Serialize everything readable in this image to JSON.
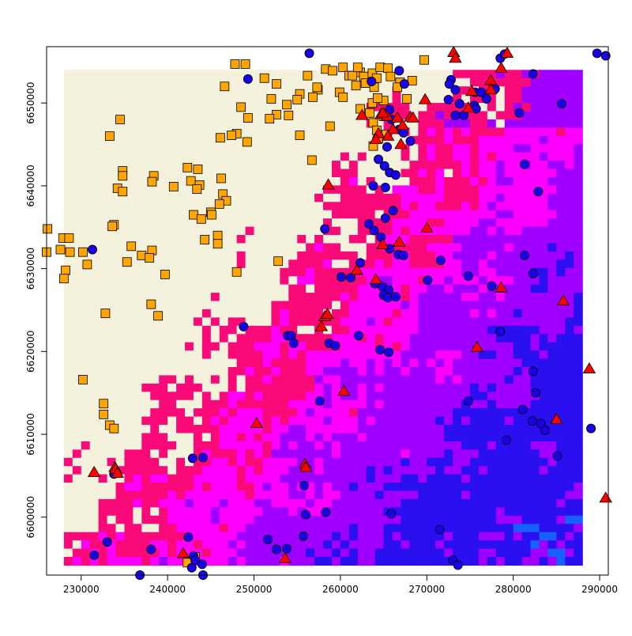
{
  "map": {
    "x_axis": {
      "range": [
        226000,
        291000
      ],
      "ticks": [
        230000,
        240000,
        250000,
        260000,
        270000,
        280000,
        290000
      ]
    },
    "y_axis": {
      "range": [
        6593000,
        6656800
      ],
      "ticks": [
        6600000,
        6610000,
        6620000,
        6630000,
        6640000,
        6650000
      ]
    },
    "raster": {
      "extent_x": [
        228000,
        288000
      ],
      "extent_y": [
        6594200,
        6654000
      ],
      "palette": [
        "#f4f2dc",
        "#fa0a78",
        "#ff00ff",
        "#a000ff",
        "#2a10f0",
        "#1560ff"
      ],
      "zones": [
        {
          "value": 0,
          "color": "#f4f2dc"
        },
        {
          "value": 1,
          "color": "#fa0a78"
        },
        {
          "value": 2,
          "color": "#ff00ff"
        },
        {
          "value": 3,
          "color": "#a000ff"
        },
        {
          "value": 4,
          "color": "#2a10f0"
        },
        {
          "value": 5,
          "color": "#1560ff"
        }
      ]
    },
    "point_layers": [
      {
        "symbol": "square",
        "fill": "#ffa500",
        "points": [
          [
            247800,
            6654700
          ],
          [
            249000,
            6654700
          ],
          [
            251200,
            6653000
          ],
          [
            252600,
            6652300
          ],
          [
            255300,
            6651100
          ],
          [
            256200,
            6653300
          ],
          [
            258300,
            6654100
          ],
          [
            257400,
            6651600
          ],
          [
            252000,
            6650500
          ],
          [
            253800,
            6649800
          ],
          [
            255000,
            6650400
          ],
          [
            256800,
            6650700
          ],
          [
            254000,
            6648500
          ],
          [
            252600,
            6648600
          ],
          [
            251800,
            6648100
          ],
          [
            255300,
            6646100
          ],
          [
            258800,
            6647200
          ],
          [
            256700,
            6643100
          ],
          [
            249200,
            6645300
          ],
          [
            248000,
            6646300
          ],
          [
            247400,
            6646100
          ],
          [
            246100,
            6645800
          ],
          [
            246600,
            6652000
          ],
          [
            248500,
            6649500
          ],
          [
            249300,
            6648200
          ],
          [
            233300,
            6646000
          ],
          [
            234500,
            6648000
          ],
          [
            234800,
            6641800
          ],
          [
            234800,
            6641200
          ],
          [
            234200,
            6639700
          ],
          [
            234800,
            6639300
          ],
          [
            238400,
            6641200
          ],
          [
            238200,
            6640500
          ],
          [
            240700,
            6639900
          ],
          [
            242300,
            6642200
          ],
          [
            243500,
            6642000
          ],
          [
            242700,
            6640600
          ],
          [
            243700,
            6640100
          ],
          [
            243400,
            6639600
          ],
          [
            246200,
            6640900
          ],
          [
            246400,
            6639000
          ],
          [
            246800,
            6638200
          ],
          [
            246000,
            6637800
          ],
          [
            245000,
            6636800
          ],
          [
            245100,
            6636500
          ],
          [
            243000,
            6636500
          ],
          [
            243900,
            6636000
          ],
          [
            245800,
            6634000
          ],
          [
            244300,
            6633500
          ],
          [
            245800,
            6633000
          ],
          [
            226100,
            6634800
          ],
          [
            227900,
            6633700
          ],
          [
            228600,
            6633700
          ],
          [
            227600,
            6632300
          ],
          [
            226000,
            6632000
          ],
          [
            228700,
            6632000
          ],
          [
            230200,
            6632000
          ],
          [
            230700,
            6630500
          ],
          [
            228200,
            6629800
          ],
          [
            228000,
            6628800
          ],
          [
            233800,
            6635300
          ],
          [
            233600,
            6635100
          ],
          [
            235800,
            6632700
          ],
          [
            235300,
            6630800
          ],
          [
            237000,
            6631600
          ],
          [
            238200,
            6632200
          ],
          [
            237900,
            6631300
          ],
          [
            239700,
            6629300
          ],
          [
            248000,
            6629600
          ],
          [
            252800,
            6630900
          ],
          [
            232800,
            6624600
          ],
          [
            238100,
            6625700
          ],
          [
            238900,
            6624300
          ],
          [
            230200,
            6616600
          ],
          [
            232600,
            6613700
          ],
          [
            232600,
            6612400
          ],
          [
            233300,
            6611100
          ],
          [
            233800,
            6610700
          ],
          [
            243200,
            6595200
          ],
          [
            242300,
            6594500
          ],
          [
            260300,
            6654300
          ],
          [
            261000,
            6653300
          ],
          [
            262300,
            6653700
          ],
          [
            262700,
            6653200
          ],
          [
            263700,
            6653600
          ],
          [
            264200,
            6653000
          ],
          [
            264600,
            6654300
          ],
          [
            265500,
            6654200
          ],
          [
            261800,
            6652100
          ],
          [
            262900,
            6652400
          ],
          [
            263900,
            6651900
          ],
          [
            263700,
            6650000
          ],
          [
            262300,
            6649300
          ],
          [
            263400,
            6648800
          ],
          [
            265000,
            6648400
          ],
          [
            263800,
            6647600
          ],
          [
            264200,
            6646700
          ],
          [
            265300,
            6646200
          ],
          [
            265800,
            6653200
          ],
          [
            266900,
            6652500
          ],
          [
            268300,
            6652700
          ],
          [
            266600,
            6651900
          ],
          [
            269700,
            6655200
          ],
          [
            267700,
            6650500
          ],
          [
            265000,
            6650300
          ],
          [
            263800,
            6644800
          ],
          [
            264400,
            6645700
          ],
          [
            259900,
            6651300
          ],
          [
            260300,
            6650700
          ],
          [
            257300,
            6651900
          ],
          [
            259100,
            6653900
          ],
          [
            261400,
            6653300
          ],
          [
            262000,
            6654300
          ],
          [
            264300,
            6650600
          ]
        ]
      },
      {
        "symbol": "circle",
        "fill": "#1a00e6",
        "points": [
          [
            249300,
            6652900
          ],
          [
            256400,
            6656000
          ],
          [
            263600,
            6652600
          ],
          [
            266800,
            6653900
          ],
          [
            267400,
            6652300
          ],
          [
            272800,
            6652800
          ],
          [
            273300,
            6651600
          ],
          [
            275600,
            6651300
          ],
          [
            276300,
            6651300
          ],
          [
            272500,
            6650400
          ],
          [
            273800,
            6649900
          ],
          [
            275500,
            6649700
          ],
          [
            273300,
            6648500
          ],
          [
            274300,
            6648500
          ],
          [
            275700,
            6649300
          ],
          [
            276900,
            6650500
          ],
          [
            277900,
            6651700
          ],
          [
            280700,
            6648800
          ],
          [
            282300,
            6653500
          ],
          [
            285600,
            6649900
          ],
          [
            278500,
            6655400
          ],
          [
            279000,
            6655900
          ],
          [
            289700,
            6656000
          ],
          [
            290700,
            6655700
          ],
          [
            265700,
            6649200
          ],
          [
            265900,
            6648000
          ],
          [
            266800,
            6646800
          ],
          [
            267300,
            6646400
          ],
          [
            268100,
            6645400
          ],
          [
            265400,
            6644700
          ],
          [
            264400,
            6643200
          ],
          [
            265100,
            6642400
          ],
          [
            265700,
            6641600
          ],
          [
            266400,
            6641300
          ],
          [
            263800,
            6640000
          ],
          [
            265200,
            6639800
          ],
          [
            266100,
            6637000
          ],
          [
            265200,
            6636100
          ],
          [
            263300,
            6635400
          ],
          [
            263900,
            6634600
          ],
          [
            264700,
            6633800
          ],
          [
            265700,
            6632400
          ],
          [
            266700,
            6631700
          ],
          [
            267300,
            6631600
          ],
          [
            258200,
            6634800
          ],
          [
            262300,
            6630700
          ],
          [
            260100,
            6629000
          ],
          [
            261200,
            6628900
          ],
          [
            264000,
            6628200
          ],
          [
            264900,
            6627800
          ],
          [
            265600,
            6627400
          ],
          [
            265000,
            6626800
          ],
          [
            265500,
            6626500
          ],
          [
            266400,
            6626600
          ],
          [
            270100,
            6628600
          ],
          [
            271600,
            6631000
          ],
          [
            274800,
            6629100
          ],
          [
            277500,
            6627900
          ],
          [
            281300,
            6631600
          ],
          [
            282300,
            6629400
          ],
          [
            281300,
            6642600
          ],
          [
            282900,
            6639300
          ],
          [
            248800,
            6623000
          ],
          [
            253900,
            6621900
          ],
          [
            254300,
            6621900
          ],
          [
            254600,
            6621000
          ],
          [
            258700,
            6621000
          ],
          [
            259400,
            6620700
          ],
          [
            262100,
            6621900
          ],
          [
            264600,
            6620200
          ],
          [
            265600,
            6619900
          ],
          [
            278500,
            6622400
          ],
          [
            282300,
            6617600
          ],
          [
            282600,
            6615000
          ],
          [
            281100,
            6613000
          ],
          [
            282200,
            6611600
          ],
          [
            283200,
            6611300
          ],
          [
            283700,
            6610500
          ],
          [
            285100,
            6607400
          ],
          [
            289000,
            6610700
          ],
          [
            279200,
            6609300
          ],
          [
            274800,
            6614000
          ],
          [
            257600,
            6614000
          ],
          [
            242900,
            6607100
          ],
          [
            244100,
            6607200
          ],
          [
            233800,
            6605200
          ],
          [
            255800,
            6603800
          ],
          [
            256000,
            6600300
          ],
          [
            258300,
            6600600
          ],
          [
            265900,
            6600400
          ],
          [
            271500,
            6598500
          ],
          [
            255700,
            6597700
          ],
          [
            251600,
            6597300
          ],
          [
            252600,
            6596100
          ],
          [
            253800,
            6596200
          ],
          [
            233000,
            6597000
          ],
          [
            231500,
            6595400
          ],
          [
            238100,
            6596100
          ],
          [
            242400,
            6597600
          ],
          [
            243000,
            6595300
          ],
          [
            242800,
            6593900
          ],
          [
            243200,
            6594800
          ],
          [
            244000,
            6594300
          ],
          [
            244100,
            6593000
          ],
          [
            236800,
            6593000
          ],
          [
            273000,
            6594800
          ],
          [
            273600,
            6594200
          ],
          [
            231300,
            6632300
          ],
          [
            272600,
            6652300
          ]
        ]
      },
      {
        "symbol": "triangle",
        "fill": "#ff0000",
        "points": [
          [
            273100,
            6656100
          ],
          [
            273300,
            6655400
          ],
          [
            279300,
            6656000
          ],
          [
            278600,
            6654200
          ],
          [
            277400,
            6652700
          ],
          [
            277400,
            6651600
          ],
          [
            275200,
            6651400
          ],
          [
            274800,
            6649400
          ],
          [
            269800,
            6650400
          ],
          [
            264700,
            6648600
          ],
          [
            265400,
            6648400
          ],
          [
            266600,
            6648200
          ],
          [
            267200,
            6647300
          ],
          [
            268100,
            6648300
          ],
          [
            268400,
            6648200
          ],
          [
            266100,
            6646800
          ],
          [
            265500,
            6646000
          ],
          [
            264400,
            6646300
          ],
          [
            264100,
            6645600
          ],
          [
            267000,
            6645000
          ],
          [
            264900,
            6648800
          ],
          [
            262500,
            6648500
          ],
          [
            258600,
            6640100
          ],
          [
            270000,
            6634900
          ],
          [
            266800,
            6633200
          ],
          [
            264900,
            6632900
          ],
          [
            261900,
            6629800
          ],
          [
            264100,
            6628700
          ],
          [
            258200,
            6624200
          ],
          [
            258500,
            6624500
          ],
          [
            257800,
            6623000
          ],
          [
            260400,
            6615200
          ],
          [
            275800,
            6620500
          ],
          [
            278600,
            6627700
          ],
          [
            285800,
            6626100
          ],
          [
            288800,
            6617900
          ],
          [
            285000,
            6611800
          ],
          [
            250300,
            6611300
          ],
          [
            231500,
            6605400
          ],
          [
            233900,
            6606000
          ],
          [
            234000,
            6605800
          ],
          [
            234200,
            6605300
          ],
          [
            255900,
            6606400
          ],
          [
            256000,
            6606000
          ],
          [
            241800,
            6595600
          ],
          [
            253600,
            6595000
          ],
          [
            290700,
            6602300
          ]
        ]
      }
    ]
  }
}
